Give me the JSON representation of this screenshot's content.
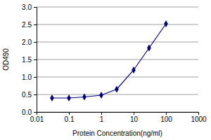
{
  "chart_data": {
    "type": "line",
    "x_label": "Protein Concentration(ng/ml)",
    "y_label": "OD490",
    "x": [
      0.03,
      0.1,
      0.3,
      1,
      3,
      10,
      30,
      100
    ],
    "values": [
      0.4,
      0.4,
      0.43,
      0.48,
      0.65,
      1.2,
      1.83,
      2.52
    ],
    "color": "#000080",
    "marker": "diamond",
    "log": "x",
    "xlim": [
      0.01,
      1000
    ],
    "xticks": [
      0.01,
      0.1,
      1,
      10,
      100,
      1000
    ],
    "ylim": [
      0,
      3
    ],
    "yticks": [
      {
        "value": 0,
        "label": "0.0"
      },
      0.5,
      {
        "value": 1,
        "label": "1.0"
      },
      1.5,
      {
        "value": 2,
        "label": "2.0"
      },
      2.5,
      {
        "value": 3,
        "label": "3.0"
      }
    ],
    "grid": true
  }
}
